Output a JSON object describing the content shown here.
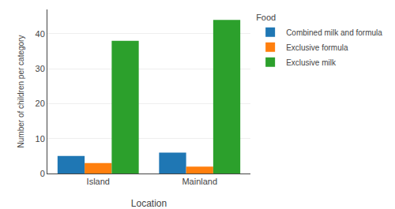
{
  "chart_data": {
    "type": "bar",
    "xlabel": "Location",
    "ylabel": "Number of children per category",
    "legend_title": "Food",
    "categories": [
      "Island",
      "Mainland"
    ],
    "series": [
      {
        "name": "Combined milk and formula",
        "values": [
          5,
          6
        ]
      },
      {
        "name": "Exclusive formula",
        "values": [
          3,
          2
        ]
      },
      {
        "name": "Exclusive milk",
        "values": [
          38,
          44
        ]
      }
    ],
    "ylim": [
      0,
      47
    ],
    "yticks": [
      0,
      10,
      20,
      30,
      40
    ],
    "grid": true,
    "legend": "right"
  }
}
